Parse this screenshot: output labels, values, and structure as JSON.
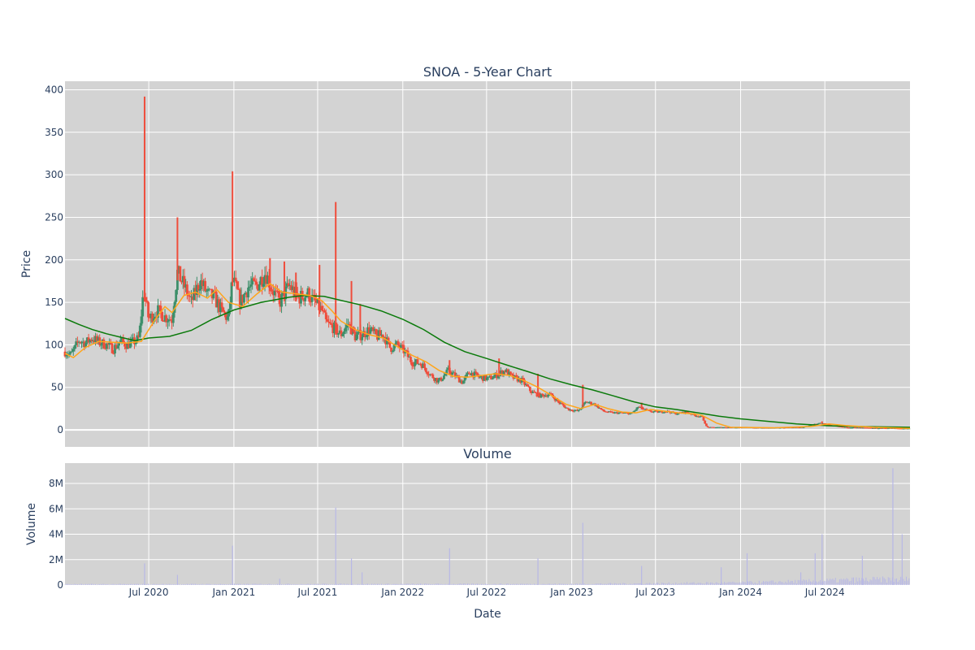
{
  "colors": {
    "plot_bg": "#d3d3d3",
    "grid": "#ffffff",
    "increasing": "#3d8f6a",
    "decreasing": "#ef4d3c",
    "ma_short": "#ffa51a",
    "ma_long": "#0b7a0b",
    "volume": "#b8b8e6",
    "text": "#2a3f5f"
  },
  "chart_data": [
    {
      "type": "candlestick",
      "title": "SNOA - 5-Year Chart",
      "xlabel": "",
      "ylabel": "Price",
      "yticks": [
        0,
        50,
        100,
        150,
        200,
        250,
        300,
        350,
        400
      ],
      "ylim": [
        -20,
        410
      ],
      "xlim": [
        "2020-01-02",
        "2025-01-01"
      ],
      "grid": true,
      "price_path": [
        [
          "2020-01-02",
          92
        ],
        [
          "2020-01-15",
          88
        ],
        [
          "2020-02-01",
          105
        ],
        [
          "2020-02-15",
          102
        ],
        [
          "2020-03-01",
          108
        ],
        [
          "2020-03-15",
          103
        ],
        [
          "2020-04-01",
          100
        ],
        [
          "2020-04-15",
          95
        ],
        [
          "2020-05-01",
          104
        ],
        [
          "2020-05-15",
          100
        ],
        [
          "2020-06-01",
          104
        ],
        [
          "2020-06-10",
          108
        ],
        [
          "2020-06-20",
          165
        ],
        [
          "2020-07-01",
          130
        ],
        [
          "2020-07-20",
          140
        ],
        [
          "2020-08-05",
          133
        ],
        [
          "2020-08-20",
          130
        ],
        [
          "2020-09-01",
          185
        ],
        [
          "2020-09-15",
          170
        ],
        [
          "2020-10-01",
          150
        ],
        [
          "2020-10-20",
          175
        ],
        [
          "2020-11-05",
          160
        ],
        [
          "2020-11-20",
          155
        ],
        [
          "2020-12-05",
          140
        ],
        [
          "2020-12-20",
          130
        ],
        [
          "2020-12-29",
          178
        ],
        [
          "2021-01-15",
          150
        ],
        [
          "2021-02-01",
          168
        ],
        [
          "2021-02-20",
          170
        ],
        [
          "2021-03-10",
          185
        ],
        [
          "2021-03-25",
          165
        ],
        [
          "2021-04-10",
          150
        ],
        [
          "2021-05-01",
          170
        ],
        [
          "2021-05-20",
          155
        ],
        [
          "2021-06-10",
          160
        ],
        [
          "2021-06-25",
          150
        ],
        [
          "2021-07-10",
          140
        ],
        [
          "2021-07-20",
          125
        ],
        [
          "2021-08-05",
          120
        ],
        [
          "2021-08-20",
          112
        ],
        [
          "2021-09-05",
          125
        ],
        [
          "2021-09-20",
          110
        ],
        [
          "2021-10-05",
          112
        ],
        [
          "2021-10-20",
          118
        ],
        [
          "2021-11-05",
          110
        ],
        [
          "2021-11-20",
          112
        ],
        [
          "2021-12-05",
          96
        ],
        [
          "2021-12-20",
          100
        ],
        [
          "2022-01-05",
          92
        ],
        [
          "2022-01-20",
          80
        ],
        [
          "2022-02-10",
          78
        ],
        [
          "2022-03-01",
          65
        ],
        [
          "2022-03-20",
          57
        ],
        [
          "2022-04-10",
          70
        ],
        [
          "2022-04-25",
          63
        ],
        [
          "2022-05-10",
          56
        ],
        [
          "2022-05-25",
          68
        ],
        [
          "2022-06-15",
          62
        ],
        [
          "2022-07-05",
          60
        ],
        [
          "2022-07-25",
          65
        ],
        [
          "2022-08-10",
          70
        ],
        [
          "2022-08-25",
          62
        ],
        [
          "2022-09-15",
          58
        ],
        [
          "2022-10-05",
          45
        ],
        [
          "2022-10-25",
          40
        ],
        [
          "2022-11-15",
          42
        ],
        [
          "2022-12-05",
          32
        ],
        [
          "2022-12-25",
          24
        ],
        [
          "2023-01-15",
          22
        ],
        [
          "2023-02-01",
          33
        ],
        [
          "2023-02-20",
          30
        ],
        [
          "2023-03-10",
          22
        ],
        [
          "2023-03-30",
          20
        ],
        [
          "2023-04-20",
          20
        ],
        [
          "2023-05-10",
          19
        ],
        [
          "2023-05-25",
          27
        ],
        [
          "2023-06-15",
          22
        ],
        [
          "2023-07-05",
          21
        ],
        [
          "2023-07-25",
          22
        ],
        [
          "2023-08-15",
          19
        ],
        [
          "2023-09-05",
          21
        ],
        [
          "2023-09-25",
          17
        ],
        [
          "2023-10-10",
          15
        ],
        [
          "2023-10-20",
          3
        ],
        [
          "2023-11-15",
          3
        ],
        [
          "2023-12-15",
          3
        ],
        [
          "2024-01-15",
          3
        ],
        [
          "2024-02-15",
          2.5
        ],
        [
          "2024-03-15",
          2.5
        ],
        [
          "2024-04-15",
          3
        ],
        [
          "2024-05-15",
          3
        ],
        [
          "2024-06-10",
          7
        ],
        [
          "2024-06-25",
          8
        ],
        [
          "2024-07-15",
          5
        ],
        [
          "2024-08-15",
          3
        ],
        [
          "2024-09-15",
          2.5
        ],
        [
          "2024-10-15",
          2
        ],
        [
          "2024-11-15",
          2
        ],
        [
          "2024-12-15",
          1.5
        ],
        [
          "2025-01-01",
          1.5
        ]
      ],
      "spikes": [
        [
          "2020-06-22",
          392
        ],
        [
          "2020-09-01",
          250
        ],
        [
          "2020-12-29",
          304
        ],
        [
          "2021-03-20",
          202
        ],
        [
          "2021-04-20",
          198
        ],
        [
          "2021-05-15",
          185
        ],
        [
          "2021-07-05",
          194
        ],
        [
          "2021-08-09",
          268
        ],
        [
          "2021-09-12",
          175
        ],
        [
          "2021-10-01",
          148
        ],
        [
          "2022-04-12",
          82
        ],
        [
          "2022-07-28",
          84
        ],
        [
          "2022-10-20",
          66
        ],
        [
          "2023-01-25",
          53
        ],
        [
          "2023-06-01",
          32
        ],
        [
          "2024-06-25",
          10
        ]
      ],
      "ma_short": [
        [
          "2020-01-02",
          90
        ],
        [
          "2020-01-20",
          85
        ],
        [
          "2020-02-15",
          97
        ],
        [
          "2020-03-15",
          104
        ],
        [
          "2020-04-15",
          103
        ],
        [
          "2020-05-15",
          102
        ],
        [
          "2020-06-15",
          104
        ],
        [
          "2020-07-15",
          130
        ],
        [
          "2020-08-05",
          145
        ],
        [
          "2020-08-20",
          138
        ],
        [
          "2020-09-15",
          158
        ],
        [
          "2020-10-10",
          162
        ],
        [
          "2020-11-05",
          155
        ],
        [
          "2020-11-25",
          165
        ],
        [
          "2020-12-20",
          150
        ],
        [
          "2021-01-20",
          145
        ],
        [
          "2021-02-20",
          160
        ],
        [
          "2021-03-20",
          172
        ],
        [
          "2021-04-15",
          162
        ],
        [
          "2021-05-15",
          160
        ],
        [
          "2021-06-15",
          158
        ],
        [
          "2021-07-10",
          152
        ],
        [
          "2021-08-01",
          140
        ],
        [
          "2021-08-20",
          128
        ],
        [
          "2021-09-20",
          118
        ],
        [
          "2021-10-20",
          112
        ],
        [
          "2021-11-20",
          108
        ],
        [
          "2021-12-20",
          98
        ],
        [
          "2022-01-20",
          88
        ],
        [
          "2022-02-20",
          80
        ],
        [
          "2022-03-20",
          70
        ],
        [
          "2022-04-20",
          63
        ],
        [
          "2022-05-20",
          62
        ],
        [
          "2022-06-20",
          64
        ],
        [
          "2022-07-20",
          66
        ],
        [
          "2022-08-20",
          64
        ],
        [
          "2022-09-20",
          58
        ],
        [
          "2022-10-20",
          50
        ],
        [
          "2022-11-20",
          40
        ],
        [
          "2022-12-20",
          30
        ],
        [
          "2023-01-20",
          25
        ],
        [
          "2023-02-20",
          30
        ],
        [
          "2023-03-20",
          25
        ],
        [
          "2023-04-20",
          21
        ],
        [
          "2023-05-20",
          20
        ],
        [
          "2023-06-20",
          24
        ],
        [
          "2023-07-20",
          22
        ],
        [
          "2023-08-20",
          20
        ],
        [
          "2023-09-20",
          19
        ],
        [
          "2023-10-10",
          17
        ],
        [
          "2023-11-10",
          8
        ],
        [
          "2023-12-10",
          3
        ],
        [
          "2024-03-15",
          2.5
        ],
        [
          "2024-06-01",
          4
        ],
        [
          "2024-07-10",
          7
        ],
        [
          "2024-08-15",
          5
        ],
        [
          "2024-10-15",
          3
        ],
        [
          "2025-01-01",
          1.8
        ]
      ],
      "ma_long": [
        [
          "2020-01-02",
          131
        ],
        [
          "2020-02-01",
          124
        ],
        [
          "2020-03-01",
          118
        ],
        [
          "2020-04-01",
          113
        ],
        [
          "2020-05-01",
          109
        ],
        [
          "2020-06-01",
          105
        ],
        [
          "2020-07-01",
          108
        ],
        [
          "2020-08-15",
          110
        ],
        [
          "2020-10-01",
          117
        ],
        [
          "2020-11-15",
          130
        ],
        [
          "2021-01-01",
          141
        ],
        [
          "2021-03-01",
          150
        ],
        [
          "2021-05-01",
          156
        ],
        [
          "2021-06-01",
          158
        ],
        [
          "2021-07-15",
          157
        ],
        [
          "2021-08-15",
          153
        ],
        [
          "2021-10-01",
          147
        ],
        [
          "2021-11-15",
          140
        ],
        [
          "2022-01-01",
          130
        ],
        [
          "2022-02-15",
          118
        ],
        [
          "2022-04-01",
          103
        ],
        [
          "2022-05-15",
          92
        ],
        [
          "2022-07-01",
          84
        ],
        [
          "2022-08-15",
          76
        ],
        [
          "2022-10-01",
          68
        ],
        [
          "2022-11-15",
          60
        ],
        [
          "2023-01-01",
          53
        ],
        [
          "2023-02-15",
          47
        ],
        [
          "2023-04-01",
          40
        ],
        [
          "2023-05-15",
          33
        ],
        [
          "2023-07-01",
          27
        ],
        [
          "2023-08-15",
          24
        ],
        [
          "2023-10-01",
          20
        ],
        [
          "2023-11-15",
          16
        ],
        [
          "2024-01-01",
          13
        ],
        [
          "2024-03-01",
          10
        ],
        [
          "2024-05-01",
          7
        ],
        [
          "2024-07-01",
          5
        ],
        [
          "2024-09-01",
          4
        ],
        [
          "2024-11-01",
          3.5
        ],
        [
          "2025-01-01",
          3
        ]
      ]
    },
    {
      "type": "bar",
      "title": "Volume",
      "xlabel": "Date",
      "ylabel": "Volume",
      "yticks": [
        0,
        2000000,
        4000000,
        6000000,
        8000000
      ],
      "ytick_labels": [
        "0",
        "2M",
        "4M",
        "6M",
        "8M"
      ],
      "xticks": [
        "2020-07-01",
        "2021-01-01",
        "2021-07-01",
        "2022-01-01",
        "2022-07-01",
        "2023-01-01",
        "2023-07-01",
        "2024-01-01",
        "2024-07-01"
      ],
      "xtick_labels": [
        "Jul 2020",
        "Jan 2021",
        "Jul 2021",
        "Jan 2022",
        "Jul 2022",
        "Jan 2023",
        "Jul 2023",
        "Jan 2024",
        "Jul 2024"
      ],
      "ylim": [
        0,
        9600000
      ],
      "grid": true,
      "spikes": [
        [
          "2020-06-22",
          1700000
        ],
        [
          "2020-09-01",
          800000
        ],
        [
          "2020-12-29",
          3100000
        ],
        [
          "2021-04-10",
          500000
        ],
        [
          "2021-08-09",
          6100000
        ],
        [
          "2021-09-12",
          2100000
        ],
        [
          "2021-10-05",
          1000000
        ],
        [
          "2022-04-12",
          2900000
        ],
        [
          "2022-10-20",
          2100000
        ],
        [
          "2023-01-25",
          4900000
        ],
        [
          "2023-06-01",
          1500000
        ],
        [
          "2023-11-20",
          1400000
        ],
        [
          "2024-01-15",
          2500000
        ],
        [
          "2024-05-10",
          1000000
        ],
        [
          "2024-06-10",
          2500000
        ],
        [
          "2024-06-25",
          4000000
        ],
        [
          "2024-09-20",
          2300000
        ],
        [
          "2024-11-25",
          9200000
        ],
        [
          "2024-12-15",
          4000000
        ]
      ],
      "baseline": [
        [
          "2020-01-02",
          60000
        ],
        [
          "2023-01-01",
          80000
        ],
        [
          "2023-06-01",
          120000
        ],
        [
          "2024-01-01",
          180000
        ],
        [
          "2024-06-01",
          300000
        ],
        [
          "2024-09-01",
          400000
        ],
        [
          "2025-01-01",
          450000
        ]
      ]
    }
  ],
  "labels": {
    "title": "SNOA - 5-Year Chart",
    "subplot_title": "Volume",
    "price_axis": "Price",
    "volume_axis": "Volume",
    "date_axis": "Date"
  }
}
